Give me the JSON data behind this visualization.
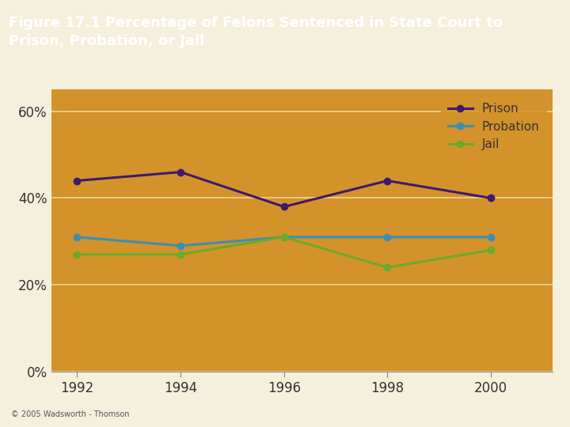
{
  "title": "Figure 17.1 Percentage of Felons Sentenced in State Court to\nPrison, Probation, or Jail",
  "title_bg_color": "#d4b483",
  "plot_bg_color": "#d4922a",
  "outer_bg_color": "#f5f0dc",
  "header_bg_color": "#d4b483",
  "years": [
    1992,
    1994,
    1996,
    1998,
    2000
  ],
  "prison": [
    44,
    46,
    38,
    44,
    40
  ],
  "probation": [
    31,
    29,
    31,
    31,
    31
  ],
  "jail": [
    27,
    27,
    31,
    24,
    28
  ],
  "prison_color": "#3d1a6e",
  "probation_color": "#3a8fb5",
  "jail_color": "#6aaa2a",
  "grid_color": "#e8d890",
  "yticks": [
    0,
    20,
    40,
    60
  ],
  "ylim": [
    0,
    65
  ],
  "xlim": [
    1991.5,
    2001.2
  ],
  "legend_labels": [
    "Prison",
    "Probation",
    "Jail"
  ],
  "footer_text": "© 2005 Wadsworth - Thomson",
  "title_fontsize": 13,
  "title_color": "#ffffff",
  "tick_label_color": "#333333",
  "footer_color": "#555555",
  "line_width": 2.2,
  "marker": "o",
  "marker_size": 6
}
